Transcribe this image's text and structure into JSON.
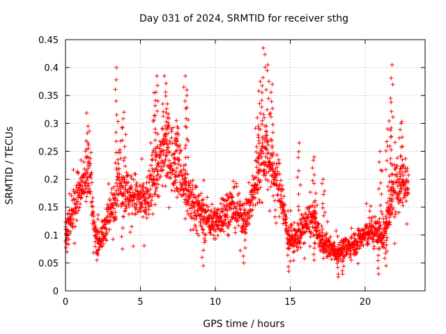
{
  "chart_data": {
    "type": "scatter",
    "title": "Day 031 of 2024, SRMTID for receiver sthg",
    "xlabel": "GPS time / hours",
    "ylabel": "SRMTID / TECUs",
    "xlim": [
      0,
      24
    ],
    "ylim": [
      0,
      0.45
    ],
    "xticks": [
      0,
      5,
      10,
      15,
      20
    ],
    "xtick_labels": [
      "0",
      "5",
      "10",
      "15",
      "20"
    ],
    "yticks": [
      0,
      0.05,
      0.1,
      0.15,
      0.2,
      0.25,
      0.3,
      0.35,
      0.4,
      0.45
    ],
    "ytick_labels": [
      "0",
      "0.05",
      "0.1",
      "0.15",
      "0.2",
      "0.25",
      "0.3",
      "0.35",
      "0.4",
      "0.45"
    ],
    "grid": true,
    "marker": "+",
    "color": "#ff0000",
    "series": [
      {
        "name": "SRMTID",
        "trend": {
          "x": [
            0,
            0.3,
            0.6,
            0.9,
            1.2,
            1.5,
            1.7,
            1.9,
            2.2,
            2.5,
            2.8,
            3.0,
            3.3,
            3.5,
            3.8,
            4.0,
            4.3,
            4.6,
            5.0,
            5.4,
            5.8,
            6.2,
            6.6,
            7.0,
            7.5,
            8.0,
            8.5,
            9.0,
            9.5,
            10.0,
            10.5,
            11.0,
            11.5,
            12.0,
            12.5,
            13.0,
            13.3,
            13.6,
            14.0,
            14.4,
            14.8,
            15.2,
            15.6,
            16.0,
            16.5,
            17.0,
            17.5,
            18.0,
            18.5,
            19.0,
            19.5,
            20.0,
            20.5,
            21.0,
            21.3,
            21.6,
            22.0,
            22.5,
            22.9
          ],
          "y": [
            0.115,
            0.12,
            0.16,
            0.18,
            0.2,
            0.21,
            0.2,
            0.11,
            0.09,
            0.1,
            0.13,
            0.14,
            0.17,
            0.21,
            0.19,
            0.18,
            0.17,
            0.17,
            0.16,
            0.16,
            0.2,
            0.22,
            0.25,
            0.24,
            0.23,
            0.18,
            0.16,
            0.14,
            0.13,
            0.12,
            0.14,
            0.15,
            0.14,
            0.13,
            0.17,
            0.22,
            0.25,
            0.23,
            0.2,
            0.18,
            0.1,
            0.09,
            0.1,
            0.12,
            0.13,
            0.09,
            0.08,
            0.07,
            0.075,
            0.08,
            0.09,
            0.1,
            0.11,
            0.1,
            0.1,
            0.15,
            0.18,
            0.2,
            0.19
          ]
        },
        "peaks": [
          {
            "x": 1.5,
            "y": 0.295
          },
          {
            "x": 3.4,
            "y": 0.4
          },
          {
            "x": 3.9,
            "y": 0.32
          },
          {
            "x": 5.9,
            "y": 0.355
          },
          {
            "x": 6.1,
            "y": 0.385
          },
          {
            "x": 6.6,
            "y": 0.385
          },
          {
            "x": 6.8,
            "y": 0.335
          },
          {
            "x": 7.4,
            "y": 0.305
          },
          {
            "x": 8.0,
            "y": 0.385
          },
          {
            "x": 8.1,
            "y": 0.36
          },
          {
            "x": 12.8,
            "y": 0.31
          },
          {
            "x": 13.0,
            "y": 0.375
          },
          {
            "x": 13.2,
            "y": 0.435
          },
          {
            "x": 13.5,
            "y": 0.405
          },
          {
            "x": 13.8,
            "y": 0.37
          },
          {
            "x": 15.6,
            "y": 0.265
          },
          {
            "x": 16.6,
            "y": 0.24
          },
          {
            "x": 17.2,
            "y": 0.2
          },
          {
            "x": 21.0,
            "y": 0.25
          },
          {
            "x": 21.5,
            "y": 0.29
          },
          {
            "x": 21.7,
            "y": 0.345
          },
          {
            "x": 21.8,
            "y": 0.405
          },
          {
            "x": 22.4,
            "y": 0.3
          }
        ],
        "lows": [
          {
            "x": 0.1,
            "y": 0.07
          },
          {
            "x": 2.1,
            "y": 0.055
          },
          {
            "x": 3.8,
            "y": 0.075
          },
          {
            "x": 9.2,
            "y": 0.045
          },
          {
            "x": 11.9,
            "y": 0.05
          },
          {
            "x": 14.9,
            "y": 0.035
          },
          {
            "x": 16.6,
            "y": 0.055
          },
          {
            "x": 18.2,
            "y": 0.025
          },
          {
            "x": 18.5,
            "y": 0.03
          },
          {
            "x": 20.9,
            "y": 0.03
          },
          {
            "x": 21.4,
            "y": 0.045
          }
        ]
      }
    ]
  }
}
